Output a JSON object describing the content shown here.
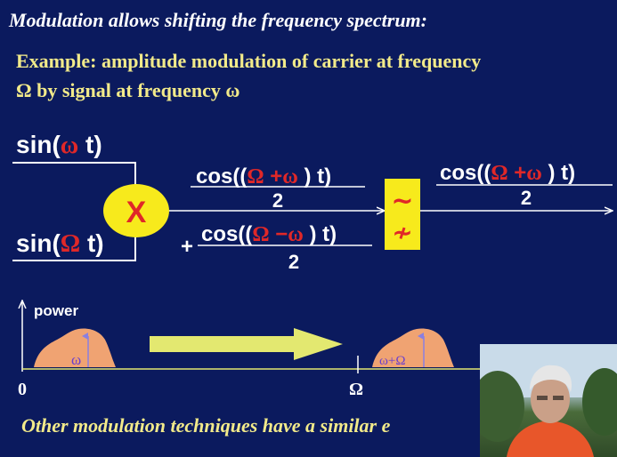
{
  "title": "Modulation allows shifting the frequency spectrum:",
  "example_line1": "Example: amplitude modulation of carrier at frequency",
  "example_line2": "Ω by signal at frequency ω",
  "inputs": {
    "top": {
      "prefix": "sin(",
      "symbol": "ω",
      "suffix": " t)"
    },
    "bottom": {
      "prefix": "sin(",
      "symbol": "Ω",
      "suffix": " t)"
    }
  },
  "multiplier_label": "X",
  "term_sum": {
    "num_prefix": "cos((",
    "sym1": "Ω",
    "op": " +",
    "sym2": "ω",
    "num_suffix": " ) t)",
    "den": "2"
  },
  "term_diff": {
    "sign": "+",
    "num_prefix": "cos((",
    "sym1": "Ω",
    "op": "  −",
    "sym2": "ω",
    "num_suffix": " ) t)",
    "den": "2"
  },
  "filter_symbols": {
    "top": "~",
    "bottom": "≁"
  },
  "output": {
    "num_prefix": "cos((",
    "sym1": "Ω",
    "op": " +",
    "sym2": "ω",
    "num_suffix": " ) t)",
    "den": "2"
  },
  "spectrum": {
    "axis_label": "power",
    "baseband_label": "ω",
    "shifted_label": "ω+Ω",
    "origin_label": "0",
    "carrier_label": "Ω"
  },
  "footer": "Other modulation techniques have a similar e",
  "colors": {
    "background": "#0b1a5e",
    "accent_red": "#e02828",
    "yellow": "#f7ea1c",
    "arrow_fill": "#e3e870",
    "spectrum_fill": "#f0a372",
    "line": "#ffffff"
  }
}
